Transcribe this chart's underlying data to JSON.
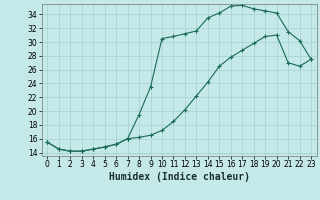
{
  "xlabel": "Humidex (Indice chaleur)",
  "bg_color": "#c5e8e8",
  "grid_color": "#a8d0d0",
  "line_color": "#1a6b5a",
  "xlim": [
    -0.5,
    23.5
  ],
  "ylim": [
    13.5,
    35.5
  ],
  "xticks": [
    0,
    1,
    2,
    3,
    4,
    5,
    6,
    7,
    8,
    9,
    10,
    11,
    12,
    13,
    14,
    15,
    16,
    17,
    18,
    19,
    20,
    21,
    22,
    23
  ],
  "yticks": [
    14,
    16,
    18,
    20,
    22,
    24,
    26,
    28,
    30,
    32,
    34
  ],
  "line1_x": [
    0,
    1,
    2,
    3,
    4,
    5,
    6,
    7,
    8,
    9,
    10,
    11,
    12,
    13,
    14,
    15,
    16,
    17,
    18,
    19,
    20,
    21,
    22,
    23
  ],
  "line1_y": [
    15.5,
    14.5,
    14.2,
    14.2,
    14.5,
    14.8,
    15.2,
    16.0,
    19.5,
    23.5,
    30.5,
    30.8,
    31.2,
    31.6,
    33.5,
    34.2,
    35.2,
    35.3,
    34.8,
    34.5,
    34.2,
    31.5,
    30.2,
    27.5
  ],
  "line2_x": [
    0,
    1,
    2,
    3,
    4,
    5,
    6,
    7,
    8,
    9,
    10,
    11,
    12,
    13,
    14,
    15,
    16,
    17,
    18,
    19,
    20,
    21,
    22,
    23
  ],
  "line2_y": [
    15.5,
    14.5,
    14.2,
    14.2,
    14.5,
    14.8,
    15.2,
    16.0,
    16.2,
    16.5,
    17.2,
    18.5,
    20.2,
    22.2,
    24.2,
    26.5,
    27.8,
    28.8,
    29.8,
    30.8,
    31.0,
    27.0,
    26.5,
    27.5
  ],
  "xlabel_fontsize": 7,
  "tick_fontsize": 5.5
}
